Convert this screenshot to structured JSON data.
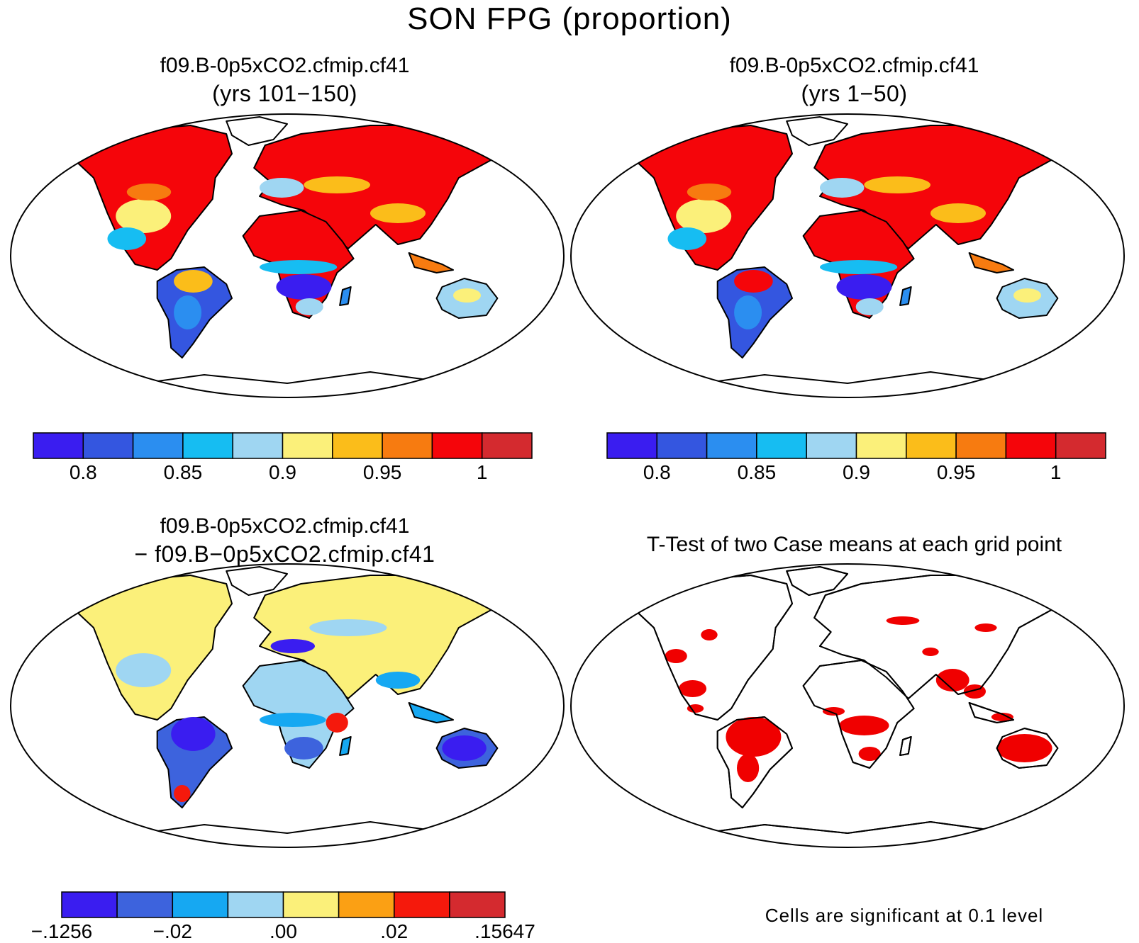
{
  "title": "SON FPG (proportion)",
  "panels": [
    {
      "title": "f09.B-0p5xCO2.cfmip.cf41",
      "subtitle": "(yrs 101−150)"
    },
    {
      "title": "f09.B-0p5xCO2.cfmip.cf41",
      "subtitle": "(yrs 1−50)"
    },
    {
      "title": "f09.B-0p5xCO2.cfmip.cf41",
      "subtitle": "− f09.B−0p5xCO2.cfmip.cf41"
    },
    {
      "title": "T-Test of two Case means at each grid point",
      "subtitle": ""
    }
  ],
  "colorbars": {
    "mean": {
      "colors": [
        "#3a1df0",
        "#3456e0",
        "#2b8ef0",
        "#16bdf2",
        "#9fd6f2",
        "#fbf07a",
        "#fbbd1a",
        "#f77b10",
        "#f5050a",
        "#d42a2f"
      ],
      "labels": [
        "0.8",
        "0.85",
        "0.9",
        "0.95",
        "1"
      ]
    },
    "diff": {
      "colors": [
        "#3a1df0",
        "#3d63dd",
        "#16a8f2",
        "#9fd6f2",
        "#fbf07a",
        "#fba014",
        "#f5190c",
        "#d42a2f"
      ],
      "labels": [
        "−.1256",
        "−.02",
        ".00",
        ".02",
        ".15647"
      ]
    }
  },
  "significance_note": "Cells are significant at 0.1 level",
  "significance_color": "#f00000"
}
